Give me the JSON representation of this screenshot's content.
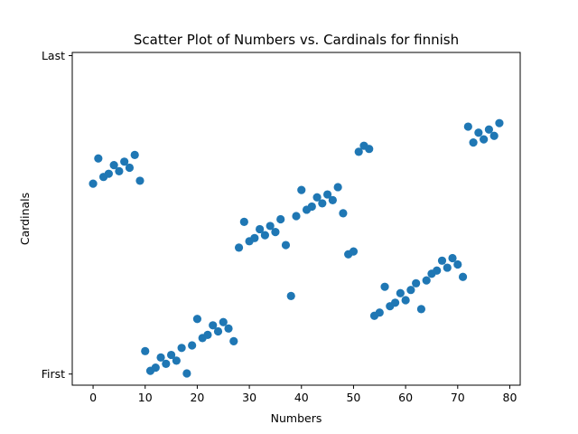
{
  "chart_data": {
    "type": "scatter",
    "title": "Scatter Plot of Numbers vs. Cardinals for finnish",
    "xlabel": "Numbers",
    "ylabel": "Cardinals",
    "xlim": [
      -4,
      82
    ],
    "ylim": [
      -0.035,
      1.01
    ],
    "xticks": [
      0,
      10,
      20,
      30,
      40,
      50,
      60,
      70,
      80
    ],
    "yticks": [
      {
        "value": 0,
        "label": "First"
      },
      {
        "value": 1,
        "label": "Last"
      }
    ],
    "grid": false,
    "marker_color": "#1f77b4",
    "points": [
      {
        "x": 0,
        "y": 0.598
      },
      {
        "x": 1,
        "y": 0.677
      },
      {
        "x": 2,
        "y": 0.619
      },
      {
        "x": 3,
        "y": 0.629
      },
      {
        "x": 4,
        "y": 0.656
      },
      {
        "x": 5,
        "y": 0.637
      },
      {
        "x": 6,
        "y": 0.667
      },
      {
        "x": 7,
        "y": 0.648
      },
      {
        "x": 8,
        "y": 0.688
      },
      {
        "x": 9,
        "y": 0.607
      },
      {
        "x": 10,
        "y": 0.072
      },
      {
        "x": 11,
        "y": 0.01
      },
      {
        "x": 12,
        "y": 0.02
      },
      {
        "x": 13,
        "y": 0.052
      },
      {
        "x": 14,
        "y": 0.032
      },
      {
        "x": 15,
        "y": 0.06
      },
      {
        "x": 16,
        "y": 0.042
      },
      {
        "x": 17,
        "y": 0.082
      },
      {
        "x": 18,
        "y": 0.002
      },
      {
        "x": 19,
        "y": 0.09
      },
      {
        "x": 20,
        "y": 0.173
      },
      {
        "x": 21,
        "y": 0.113
      },
      {
        "x": 22,
        "y": 0.123
      },
      {
        "x": 23,
        "y": 0.153
      },
      {
        "x": 24,
        "y": 0.134
      },
      {
        "x": 25,
        "y": 0.163
      },
      {
        "x": 26,
        "y": 0.143
      },
      {
        "x": 27,
        "y": 0.103
      },
      {
        "x": 28,
        "y": 0.397
      },
      {
        "x": 29,
        "y": 0.478
      },
      {
        "x": 30,
        "y": 0.417
      },
      {
        "x": 31,
        "y": 0.427
      },
      {
        "x": 32,
        "y": 0.455
      },
      {
        "x": 33,
        "y": 0.436
      },
      {
        "x": 34,
        "y": 0.465
      },
      {
        "x": 35,
        "y": 0.446
      },
      {
        "x": 36,
        "y": 0.486
      },
      {
        "x": 37,
        "y": 0.405
      },
      {
        "x": 38,
        "y": 0.245
      },
      {
        "x": 39,
        "y": 0.496
      },
      {
        "x": 40,
        "y": 0.578
      },
      {
        "x": 41,
        "y": 0.516
      },
      {
        "x": 42,
        "y": 0.526
      },
      {
        "x": 43,
        "y": 0.555
      },
      {
        "x": 44,
        "y": 0.536
      },
      {
        "x": 45,
        "y": 0.564
      },
      {
        "x": 46,
        "y": 0.546
      },
      {
        "x": 47,
        "y": 0.587
      },
      {
        "x": 48,
        "y": 0.505
      },
      {
        "x": 49,
        "y": 0.376
      },
      {
        "x": 50,
        "y": 0.385
      },
      {
        "x": 51,
        "y": 0.698
      },
      {
        "x": 52,
        "y": 0.717
      },
      {
        "x": 53,
        "y": 0.707
      },
      {
        "x": 54,
        "y": 0.183
      },
      {
        "x": 55,
        "y": 0.193
      },
      {
        "x": 56,
        "y": 0.274
      },
      {
        "x": 57,
        "y": 0.213
      },
      {
        "x": 58,
        "y": 0.224
      },
      {
        "x": 59,
        "y": 0.254
      },
      {
        "x": 60,
        "y": 0.232
      },
      {
        "x": 61,
        "y": 0.264
      },
      {
        "x": 62,
        "y": 0.285
      },
      {
        "x": 63,
        "y": 0.204
      },
      {
        "x": 64,
        "y": 0.294
      },
      {
        "x": 65,
        "y": 0.315
      },
      {
        "x": 66,
        "y": 0.325
      },
      {
        "x": 67,
        "y": 0.356
      },
      {
        "x": 68,
        "y": 0.334
      },
      {
        "x": 69,
        "y": 0.364
      },
      {
        "x": 70,
        "y": 0.344
      },
      {
        "x": 71,
        "y": 0.305
      },
      {
        "x": 72,
        "y": 0.777
      },
      {
        "x": 73,
        "y": 0.727
      },
      {
        "x": 74,
        "y": 0.758
      },
      {
        "x": 75,
        "y": 0.737
      },
      {
        "x": 76,
        "y": 0.768
      },
      {
        "x": 77,
        "y": 0.748
      },
      {
        "x": 78,
        "y": 0.788
      }
    ]
  }
}
